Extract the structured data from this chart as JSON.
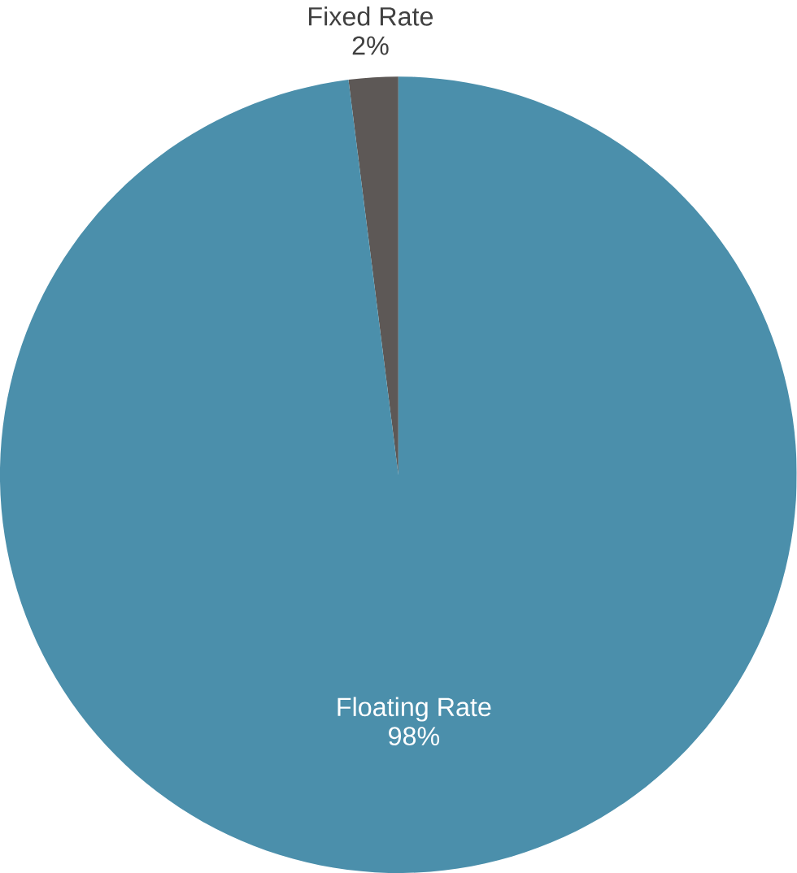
{
  "chart_data": {
    "type": "pie",
    "categories": [
      "Fixed Rate",
      "Floating Rate"
    ],
    "values": [
      2,
      98
    ],
    "colors": [
      "#5d5856",
      "#4b8fab"
    ],
    "value_labels": [
      "2%",
      "98%"
    ]
  }
}
